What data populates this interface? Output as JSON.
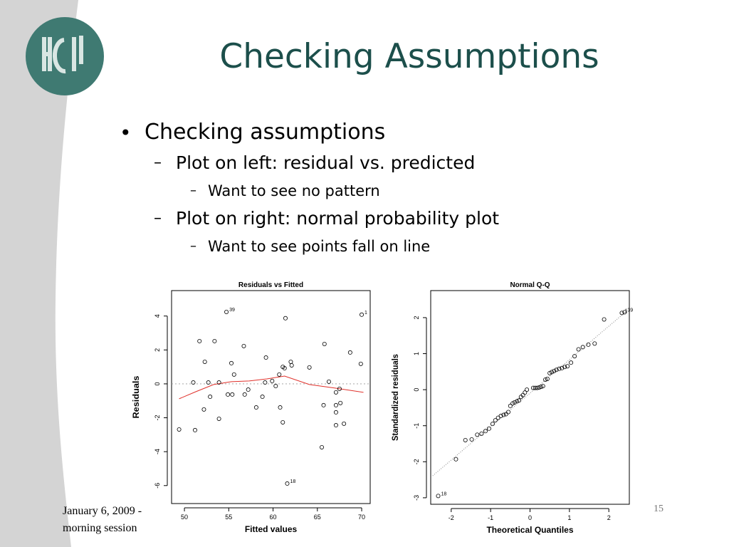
{
  "slide": {
    "title": "Checking Assumptions",
    "bullet": "Checking assumptions",
    "sub_bullets": [
      {
        "text": "Plot on left: residual vs. predicted",
        "detail": "Want to see no pattern"
      },
      {
        "text": "Plot on right: normal probability plot",
        "detail": "Want to see points fall on line"
      }
    ],
    "footer": [
      "January 6, 2009 -",
      "morning session"
    ],
    "page_number": "15"
  },
  "chart_data": [
    {
      "type": "scatter",
      "title": "Residuals vs Fitted",
      "x_label": "Fitted values",
      "y_label": "Residuals",
      "x": [
        54.74,
        70.0,
        61.4,
        51.7,
        53.4,
        56.7,
        65.8,
        68.7,
        59.2,
        52.3,
        55.3,
        62.0,
        61.1,
        61.3,
        62.1,
        64.1,
        69.9,
        55.6,
        60.7,
        51.0,
        52.7,
        53.9,
        59.1,
        59.9,
        66.3,
        60.3,
        57.2,
        67.5,
        54.9,
        55.4,
        56.8,
        52.9,
        58.8,
        67.1,
        67.1,
        67.6,
        65.7,
        52.2,
        58.1,
        60.8,
        67.1,
        53.9,
        61.1,
        67.1,
        68.0,
        49.4,
        51.2,
        65.5,
        61.6
      ],
      "y": [
        4.24,
        4.08,
        3.87,
        2.52,
        2.52,
        2.23,
        2.35,
        1.85,
        1.55,
        1.3,
        1.22,
        1.3,
        1.0,
        0.92,
        1.09,
        0.97,
        1.18,
        0.55,
        0.55,
        0.08,
        0.08,
        0.08,
        0.08,
        0.17,
        0.13,
        -0.13,
        -0.34,
        -0.29,
        -0.63,
        -0.63,
        -0.63,
        -0.76,
        -0.76,
        -0.5,
        -1.26,
        -1.13,
        -1.26,
        -1.51,
        -1.39,
        -1.39,
        -1.68,
        -2.06,
        -2.27,
        -2.44,
        -2.35,
        -2.69,
        -2.73,
        -3.74,
        -5.88
      ],
      "point_labels": [
        {
          "index": 0,
          "label": "39"
        },
        {
          "index": 1,
          "label": "1"
        },
        {
          "index": 48,
          "label": "18"
        }
      ],
      "smooth_line": {
        "color": "#e0302a",
        "x": [
          49.4,
          51.3,
          53.3,
          55.3,
          57.3,
          59.3,
          61.3,
          64.1,
          67.0,
          70.2
        ],
        "y": [
          -0.88,
          -0.46,
          -0.04,
          0.13,
          0.17,
          0.29,
          0.46,
          -0.04,
          -0.25,
          -0.5
        ]
      },
      "hline": 0,
      "xlim": [
        48.55,
        70.96
      ],
      "ylim": [
        -7.06,
        5.5
      ],
      "xticks": [
        50,
        55,
        60,
        65,
        70
      ],
      "yticks": [
        -6,
        -4,
        -2,
        0,
        2,
        4
      ]
    },
    {
      "type": "scatter",
      "title": "Normal Q-Q",
      "x_label": "Theoretical Quantiles",
      "y_label": "Standardized residuals",
      "x": [
        -2.33,
        -1.88,
        -1.64,
        -1.48,
        -1.34,
        -1.23,
        -1.13,
        -1.04,
        -0.95,
        -0.88,
        -0.81,
        -0.74,
        -0.67,
        -0.61,
        -0.55,
        -0.5,
        -0.44,
        -0.39,
        -0.33,
        -0.28,
        -0.23,
        -0.18,
        -0.13,
        -0.08,
        0.08,
        0.13,
        0.18,
        0.23,
        0.28,
        0.33,
        0.39,
        0.44,
        0.5,
        0.55,
        0.61,
        0.67,
        0.74,
        0.81,
        0.88,
        0.95,
        1.04,
        1.13,
        1.23,
        1.34,
        1.48,
        1.64,
        1.88,
        2.33,
        2.4
      ],
      "y": [
        -2.95,
        -1.93,
        -1.4,
        -1.38,
        -1.25,
        -1.22,
        -1.15,
        -1.08,
        -0.95,
        -0.85,
        -0.78,
        -0.73,
        -0.7,
        -0.68,
        -0.62,
        -0.45,
        -0.38,
        -0.35,
        -0.32,
        -0.3,
        -0.2,
        -0.15,
        -0.08,
        0.0,
        0.05,
        0.05,
        0.05,
        0.06,
        0.08,
        0.1,
        0.28,
        0.3,
        0.46,
        0.49,
        0.52,
        0.55,
        0.58,
        0.6,
        0.63,
        0.65,
        0.75,
        0.93,
        1.12,
        1.18,
        1.25,
        1.28,
        1.95,
        2.13,
        2.15
      ],
      "point_labels": [
        {
          "index": 0,
          "label": "18"
        },
        {
          "index": 47,
          "label": "1"
        },
        {
          "index": 48,
          "label": "39"
        }
      ],
      "reference_line": {
        "x": [
          -2.47,
          2.46
        ],
        "y": [
          -2.39,
          2.19
        ]
      },
      "xlim": [
        -2.52,
        2.52
      ],
      "ylim": [
        -3.18,
        2.75
      ],
      "xticks": [
        -2,
        -1,
        0,
        1,
        2
      ],
      "yticks": [
        -3,
        -2,
        -1,
        0,
        1,
        2
      ]
    }
  ]
}
